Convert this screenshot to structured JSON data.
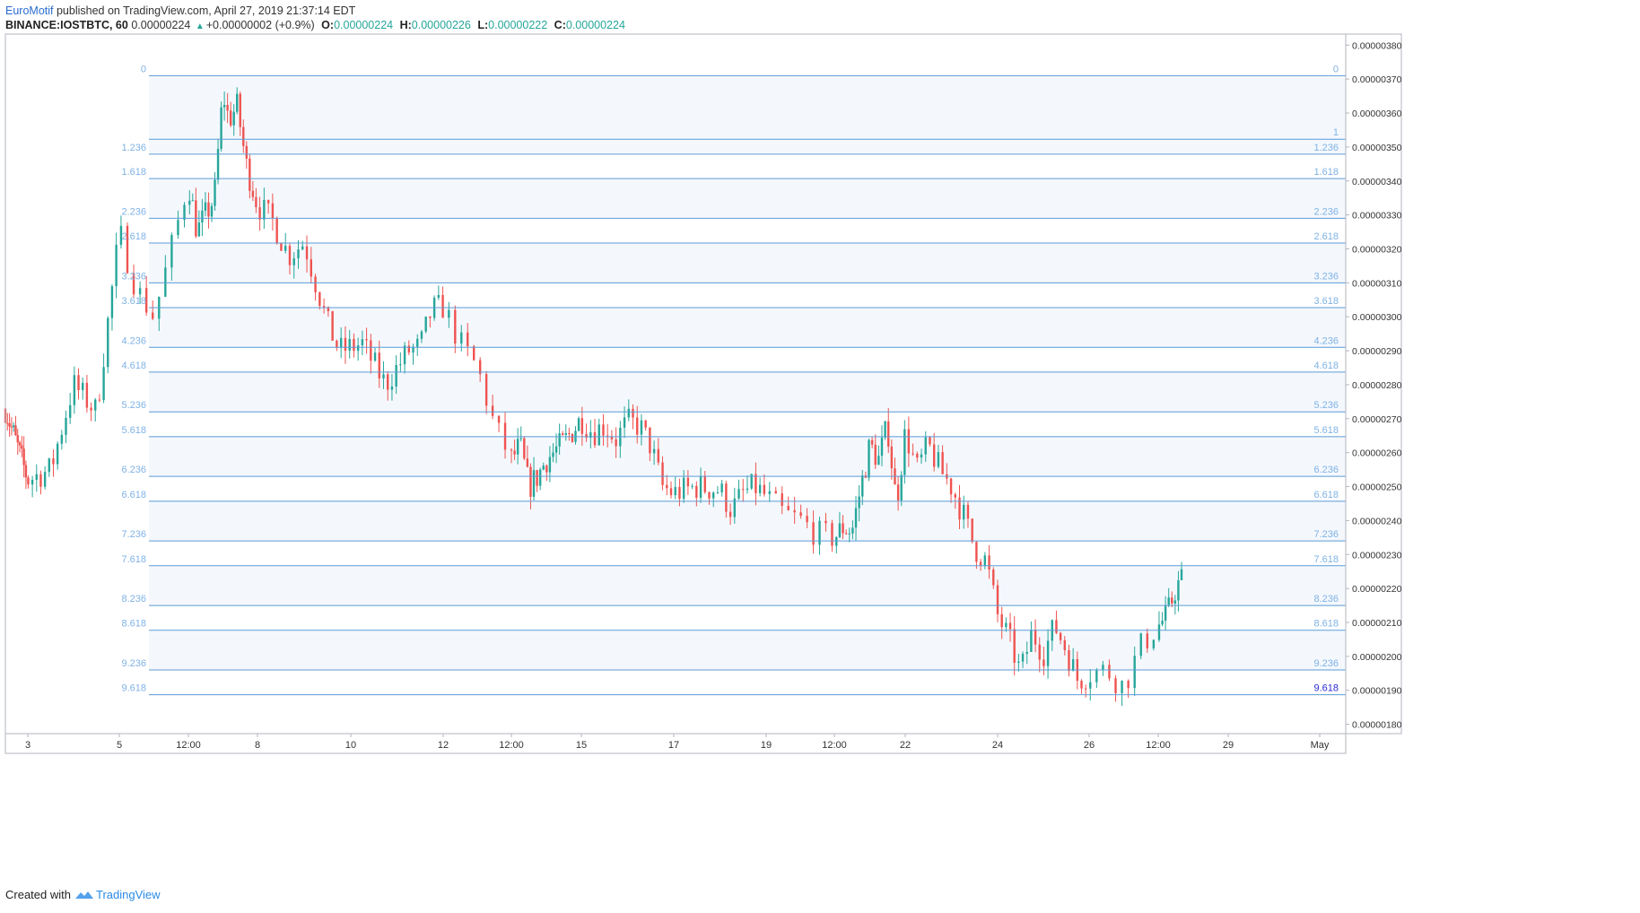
{
  "header": {
    "author": "EuroMotif",
    "published_text": " published on TradingView.com, April 27, 2019 21:37:14 EDT",
    "symbol": "BINANCE:IOSTBTC, 60",
    "last_price": "0.00000224",
    "change": "+0.00000002 (+0.9%)",
    "o_label": "O:",
    "o_value": "0.00000224",
    "h_label": "H:",
    "h_value": "0.00000226",
    "l_label": "L:",
    "l_value": "0.00000222",
    "c_label": "C:",
    "c_value": "0.00000224"
  },
  "footer": {
    "created_with": "Created with",
    "brand": "TradingView"
  },
  "colors": {
    "up": "#26a69a",
    "down": "#ef5350",
    "fib_line": "#5b9bd5",
    "fib_label": "#7fb2e5",
    "fib_band": "#f4f8fd",
    "axis_text": "#333333",
    "frame": "#b2b5be",
    "highlight_label": "#2a2ad4"
  },
  "chart_data": {
    "type": "candlestick",
    "y_axis": {
      "ticks": [
        "0.00000380",
        "0.00000370",
        "0.00000360",
        "0.00000350",
        "0.00000340",
        "0.00000330",
        "0.00000320",
        "0.00000310",
        "0.00000300",
        "0.00000290",
        "0.00000280",
        "0.00000270",
        "0.00000260",
        "0.00000250",
        "0.00000240",
        "0.00000230",
        "0.00000220",
        "0.00000210",
        "0.00000200",
        "0.00000190",
        "0.00000180"
      ],
      "range": [
        1.7725e-06,
        3.8325e-06
      ]
    },
    "x_axis": {
      "ticks": [
        "3",
        "5",
        "12:00",
        "8",
        "10",
        "12",
        "12:00",
        "15",
        "17",
        "19",
        "12:00",
        "22",
        "24",
        "26",
        "12:00",
        "29",
        "May"
      ]
    },
    "fib_extension": {
      "levels": [
        {
          "label": "0",
          "price": 3.71e-06
        },
        {
          "label": "1",
          "price": 3.523e-06
        },
        {
          "label": "1.236",
          "price": 3.479e-06
        },
        {
          "label": "1.618",
          "price": 3.407e-06
        },
        {
          "label": "2.236",
          "price": 3.29e-06
        },
        {
          "label": "2.618",
          "price": 3.217e-06
        },
        {
          "label": "3.236",
          "price": 3.1e-06
        },
        {
          "label": "3.618",
          "price": 3.027e-06
        },
        {
          "label": "4.236",
          "price": 2.91e-06
        },
        {
          "label": "4.618",
          "price": 2.837e-06
        },
        {
          "label": "5.236",
          "price": 2.72e-06
        },
        {
          "label": "5.618",
          "price": 2.647e-06
        },
        {
          "label": "6.236",
          "price": 2.53e-06
        },
        {
          "label": "6.618",
          "price": 2.457e-06
        },
        {
          "label": "7.236",
          "price": 2.34e-06
        },
        {
          "label": "7.618",
          "price": 2.267e-06
        },
        {
          "label": "8.236",
          "price": 2.15e-06
        },
        {
          "label": "8.618",
          "price": 2.077e-06
        },
        {
          "label": "9.236",
          "price": 1.96e-06
        },
        {
          "label": "9.618",
          "price": 1.887e-06
        }
      ],
      "highlighted_level": "9.618"
    },
    "price_path": [
      {
        "date": "2019-04-02",
        "close": 2.73e-06
      },
      {
        "date": "2019-04-03",
        "close": 2.52e-06
      },
      {
        "date": "2019-04-03 12:00",
        "close": 2.55e-06
      },
      {
        "date": "2019-04-04",
        "close": 2.8e-06
      },
      {
        "date": "2019-04-04 12:00",
        "close": 2.72e-06
      },
      {
        "date": "2019-04-05",
        "close": 3.25e-06
      },
      {
        "date": "2019-04-05 06:00",
        "close": 3.08e-06
      },
      {
        "date": "2019-04-05 12:00",
        "close": 3e-06
      },
      {
        "date": "2019-04-06",
        "close": 3.4e-06
      },
      {
        "date": "2019-04-06 06:00",
        "close": 3.25e-06
      },
      {
        "date": "2019-04-06 18:00",
        "close": 3.35e-06
      },
      {
        "date": "2019-04-07",
        "close": 3.66e-06
      },
      {
        "date": "2019-04-07 04:00",
        "close": 3.58e-06
      },
      {
        "date": "2019-04-07 10:00",
        "close": 3.62e-06
      },
      {
        "date": "2019-04-07 16:00",
        "close": 3.45e-06
      },
      {
        "date": "2019-04-08",
        "close": 3.33e-06
      },
      {
        "date": "2019-04-08 08:00",
        "close": 3.28e-06
      },
      {
        "date": "2019-04-08 16:00",
        "close": 3.18e-06
      },
      {
        "date": "2019-04-09",
        "close": 3.22e-06
      },
      {
        "date": "2019-04-09 06:00",
        "close": 3.1e-06
      },
      {
        "date": "2019-04-09 12:00",
        "close": 2.98e-06
      },
      {
        "date": "2019-04-09 18:00",
        "close": 2.9e-06
      },
      {
        "date": "2019-04-10 06:00",
        "close": 2.92e-06
      },
      {
        "date": "2019-04-10 18:00",
        "close": 2.8e-06
      },
      {
        "date": "2019-04-11 06:00",
        "close": 2.9e-06
      },
      {
        "date": "2019-04-11 12:00",
        "close": 2.91e-06
      },
      {
        "date": "2019-04-11 18:00",
        "close": 3.02e-06
      },
      {
        "date": "2019-04-12",
        "close": 3.03e-06
      },
      {
        "date": "2019-04-12 06:00",
        "close": 2.92e-06
      },
      {
        "date": "2019-04-12 12:00",
        "close": 2.85e-06
      },
      {
        "date": "2019-04-12 18:00",
        "close": 2.68e-06
      },
      {
        "date": "2019-04-13",
        "close": 2.58e-06
      },
      {
        "date": "2019-04-13 06:00",
        "close": 2.62e-06
      },
      {
        "date": "2019-04-13 12:00",
        "close": 2.5e-06
      },
      {
        "date": "2019-04-13 18:00",
        "close": 2.53e-06
      },
      {
        "date": "2019-04-14",
        "close": 2.58e-06
      },
      {
        "date": "2019-04-14 12:00",
        "close": 2.63e-06
      },
      {
        "date": "2019-04-15",
        "close": 2.7e-06
      },
      {
        "date": "2019-04-15 06:00",
        "close": 2.66e-06
      },
      {
        "date": "2019-04-15 12:00",
        "close": 2.68e-06
      },
      {
        "date": "2019-04-15 18:00",
        "close": 2.64e-06
      },
      {
        "date": "2019-04-16",
        "close": 2.69e-06
      },
      {
        "date": "2019-04-16 06:00",
        "close": 2.68e-06
      },
      {
        "date": "2019-04-16 12:00",
        "close": 2.62e-06
      },
      {
        "date": "2019-04-16 18:00",
        "close": 2.5e-06
      },
      {
        "date": "2019-04-17",
        "close": 2.48e-06
      },
      {
        "date": "2019-04-17 12:00",
        "close": 2.5e-06
      },
      {
        "date": "2019-04-18",
        "close": 2.49e-06
      },
      {
        "date": "2019-04-18 06:00",
        "close": 2.43e-06
      },
      {
        "date": "2019-04-18 12:00",
        "close": 2.48e-06
      },
      {
        "date": "2019-04-18 18:00",
        "close": 2.5e-06
      },
      {
        "date": "2019-04-19",
        "close": 2.47e-06
      },
      {
        "date": "2019-04-19 06:00",
        "close": 2.42e-06
      },
      {
        "date": "2019-04-19 12:00",
        "close": 2.4e-06
      },
      {
        "date": "2019-04-19 18:00",
        "close": 2.36e-06
      },
      {
        "date": "2019-04-20",
        "close": 2.35e-06
      },
      {
        "date": "2019-04-20 06:00",
        "close": 2.38e-06
      },
      {
        "date": "2019-04-20 12:00",
        "close": 2.37e-06
      },
      {
        "date": "2019-04-20 18:00",
        "close": 2.5e-06
      },
      {
        "date": "2019-04-21",
        "close": 2.62e-06
      },
      {
        "date": "2019-04-21 06:00",
        "close": 2.58e-06
      },
      {
        "date": "2019-04-21 12:00",
        "close": 2.68e-06
      },
      {
        "date": "2019-04-21 18:00",
        "close": 2.45e-06
      },
      {
        "date": "2019-04-22",
        "close": 2.66e-06
      },
      {
        "date": "2019-04-22 06:00",
        "close": 2.55e-06
      },
      {
        "date": "2019-04-22 12:00",
        "close": 2.62e-06
      },
      {
        "date": "2019-04-22 18:00",
        "close": 2.55e-06
      },
      {
        "date": "2019-04-23",
        "close": 2.5e-06
      },
      {
        "date": "2019-04-23 06:00",
        "close": 2.42e-06
      },
      {
        "date": "2019-04-23 12:00",
        "close": 2.32e-06
      },
      {
        "date": "2019-04-23 18:00",
        "close": 2.28e-06
      },
      {
        "date": "2019-04-24",
        "close": 2.12e-06
      },
      {
        "date": "2019-04-24 06:00",
        "close": 2.05e-06
      },
      {
        "date": "2019-04-24 12:00",
        "close": 1.95e-06
      },
      {
        "date": "2019-04-24 18:00",
        "close": 2.07e-06
      },
      {
        "date": "2019-04-25",
        "close": 2.01e-06
      },
      {
        "date": "2019-04-25 06:00",
        "close": 2.09e-06
      },
      {
        "date": "2019-04-25 12:00",
        "close": 2.02e-06
      },
      {
        "date": "2019-04-25 18:00",
        "close": 1.93e-06
      },
      {
        "date": "2019-04-26",
        "close": 1.95e-06
      },
      {
        "date": "2019-04-26 06:00",
        "close": 1.96e-06
      },
      {
        "date": "2019-04-26 12:00",
        "close": 1.91e-06
      },
      {
        "date": "2019-04-26 18:00",
        "close": 2.03e-06
      },
      {
        "date": "2019-04-27",
        "close": 2.09e-06
      },
      {
        "date": "2019-04-27 06:00",
        "close": 2.12e-06
      },
      {
        "date": "2019-04-27 12:00",
        "close": 2.2e-06
      },
      {
        "date": "2019-04-27 18:00",
        "close": 2.24e-06
      }
    ]
  }
}
